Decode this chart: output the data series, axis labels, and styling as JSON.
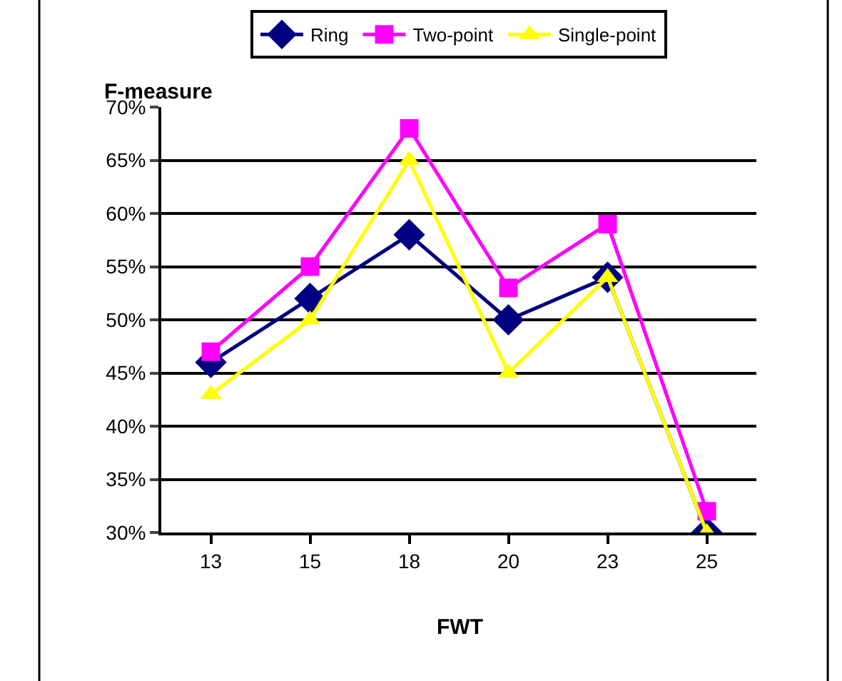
{
  "chart_data": {
    "type": "line",
    "categories": [
      "13",
      "15",
      "18",
      "20",
      "23",
      "25"
    ],
    "series": [
      {
        "name": "Ring",
        "color": "#000080",
        "marker": "diamond",
        "values": [
          46,
          52,
          58,
          50,
          54,
          30
        ]
      },
      {
        "name": "Two-point",
        "color": "#ff00ff",
        "marker": "square",
        "values": [
          47,
          55,
          68,
          53,
          59,
          32
        ]
      },
      {
        "name": "Single-point",
        "color": "#ffff00",
        "marker": "triangle",
        "values": [
          43,
          50,
          65,
          45,
          54,
          30
        ]
      }
    ],
    "xlabel": "FWT",
    "ylabel": "F-measure",
    "ylim": [
      30,
      70
    ],
    "yticks": [
      {
        "value": 30,
        "label": "30%"
      },
      {
        "value": 35,
        "label": "35%"
      },
      {
        "value": 40,
        "label": "40%"
      },
      {
        "value": 45,
        "label": "45%"
      },
      {
        "value": 50,
        "label": "50%"
      },
      {
        "value": 55,
        "label": "55%"
      },
      {
        "value": 60,
        "label": "60%"
      },
      {
        "value": 65,
        "label": "65%"
      },
      {
        "value": 70,
        "label": "70%"
      }
    ],
    "grid": "y",
    "legend": "top",
    "line_style": "solid"
  }
}
